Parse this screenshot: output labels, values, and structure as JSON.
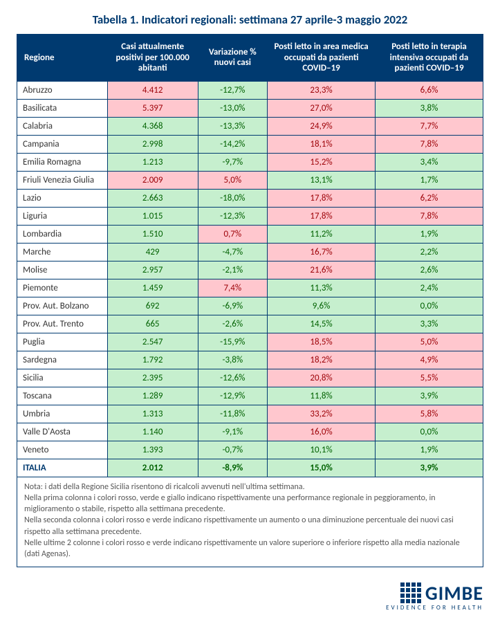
{
  "title": "Tabella 1. Indicatori regionali: settimana 27 aprile-3 maggio 2022",
  "table": {
    "type": "table",
    "header_bg": "#003a70",
    "header_color": "#ffffff",
    "cell_green_bg": "#c6efce",
    "cell_green_color": "#006100",
    "cell_red_bg": "#ffc7ce",
    "cell_red_color": "#9c0006",
    "border_color": "#003a70",
    "columns": [
      "Regione",
      "Casi attualmente positivi per 100.000 abitanti",
      "Variazione % nuovi casi",
      "Posti letto in area medica occupati da pazienti COVID–19",
      "Posti letto in terapia intensiva occupati da pazienti COVID–19"
    ],
    "rows": [
      {
        "regione": "Abruzzo",
        "casi": {
          "v": "4.412",
          "c": "red"
        },
        "var": {
          "v": "-12,7%",
          "c": "green"
        },
        "med": {
          "v": "23,3%",
          "c": "red"
        },
        "ti": {
          "v": "6,6%",
          "c": "red"
        }
      },
      {
        "regione": "Basilicata",
        "casi": {
          "v": "5.397",
          "c": "red"
        },
        "var": {
          "v": "-13,0%",
          "c": "green"
        },
        "med": {
          "v": "27,0%",
          "c": "red"
        },
        "ti": {
          "v": "3,8%",
          "c": "green"
        }
      },
      {
        "regione": "Calabria",
        "casi": {
          "v": "4.368",
          "c": "green"
        },
        "var": {
          "v": "-13,3%",
          "c": "green"
        },
        "med": {
          "v": "24,9%",
          "c": "red"
        },
        "ti": {
          "v": "7,7%",
          "c": "red"
        }
      },
      {
        "regione": "Campania",
        "casi": {
          "v": "2.998",
          "c": "green"
        },
        "var": {
          "v": "-14,2%",
          "c": "green"
        },
        "med": {
          "v": "18,1%",
          "c": "red"
        },
        "ti": {
          "v": "7,8%",
          "c": "red"
        }
      },
      {
        "regione": "Emilia Romagna",
        "casi": {
          "v": "1.213",
          "c": "green"
        },
        "var": {
          "v": "-9,7%",
          "c": "green"
        },
        "med": {
          "v": "15,2%",
          "c": "red"
        },
        "ti": {
          "v": "3,4%",
          "c": "green"
        }
      },
      {
        "regione": "Friuli Venezia Giulia",
        "casi": {
          "v": "2.009",
          "c": "red"
        },
        "var": {
          "v": "5,0%",
          "c": "red"
        },
        "med": {
          "v": "13,1%",
          "c": "green"
        },
        "ti": {
          "v": "1,7%",
          "c": "green"
        }
      },
      {
        "regione": "Lazio",
        "casi": {
          "v": "2.663",
          "c": "green"
        },
        "var": {
          "v": "-18,0%",
          "c": "green"
        },
        "med": {
          "v": "17,8%",
          "c": "red"
        },
        "ti": {
          "v": "6,2%",
          "c": "red"
        }
      },
      {
        "regione": "Liguria",
        "casi": {
          "v": "1.015",
          "c": "green"
        },
        "var": {
          "v": "-12,3%",
          "c": "green"
        },
        "med": {
          "v": "17,8%",
          "c": "red"
        },
        "ti": {
          "v": "7,8%",
          "c": "red"
        }
      },
      {
        "regione": "Lombardia",
        "casi": {
          "v": "1.510",
          "c": "green"
        },
        "var": {
          "v": "0,7%",
          "c": "red"
        },
        "med": {
          "v": "11,2%",
          "c": "green"
        },
        "ti": {
          "v": "1,9%",
          "c": "green"
        }
      },
      {
        "regione": "Marche",
        "casi": {
          "v": "429",
          "c": "green"
        },
        "var": {
          "v": "-4,7%",
          "c": "green"
        },
        "med": {
          "v": "16,7%",
          "c": "red"
        },
        "ti": {
          "v": "2,2%",
          "c": "green"
        }
      },
      {
        "regione": "Molise",
        "casi": {
          "v": "2.957",
          "c": "green"
        },
        "var": {
          "v": "-2,1%",
          "c": "green"
        },
        "med": {
          "v": "21,6%",
          "c": "red"
        },
        "ti": {
          "v": "2,6%",
          "c": "green"
        }
      },
      {
        "regione": "Piemonte",
        "casi": {
          "v": "1.459",
          "c": "green"
        },
        "var": {
          "v": "7,4%",
          "c": "red"
        },
        "med": {
          "v": "11,3%",
          "c": "green"
        },
        "ti": {
          "v": "2,4%",
          "c": "green"
        }
      },
      {
        "regione": "Prov. Aut. Bolzano",
        "casi": {
          "v": "692",
          "c": "green"
        },
        "var": {
          "v": "-6,9%",
          "c": "green"
        },
        "med": {
          "v": "9,6%",
          "c": "green"
        },
        "ti": {
          "v": "0,0%",
          "c": "green"
        }
      },
      {
        "regione": "Prov. Aut. Trento",
        "casi": {
          "v": "665",
          "c": "green"
        },
        "var": {
          "v": "-2,6%",
          "c": "green"
        },
        "med": {
          "v": "14,5%",
          "c": "green"
        },
        "ti": {
          "v": "3,3%",
          "c": "green"
        }
      },
      {
        "regione": "Puglia",
        "casi": {
          "v": "2.547",
          "c": "green"
        },
        "var": {
          "v": "-15,9%",
          "c": "green"
        },
        "med": {
          "v": "18,5%",
          "c": "red"
        },
        "ti": {
          "v": "5,0%",
          "c": "red"
        }
      },
      {
        "regione": "Sardegna",
        "casi": {
          "v": "1.792",
          "c": "green"
        },
        "var": {
          "v": "-3,8%",
          "c": "green"
        },
        "med": {
          "v": "18,2%",
          "c": "red"
        },
        "ti": {
          "v": "4,9%",
          "c": "red"
        }
      },
      {
        "regione": "Sicilia",
        "casi": {
          "v": "2.395",
          "c": "green"
        },
        "var": {
          "v": "-12,6%",
          "c": "green"
        },
        "med": {
          "v": "20,8%",
          "c": "red"
        },
        "ti": {
          "v": "5,5%",
          "c": "red"
        }
      },
      {
        "regione": "Toscana",
        "casi": {
          "v": "1.289",
          "c": "green"
        },
        "var": {
          "v": "-12,9%",
          "c": "green"
        },
        "med": {
          "v": "11,8%",
          "c": "green"
        },
        "ti": {
          "v": "3,9%",
          "c": "green"
        }
      },
      {
        "regione": "Umbria",
        "casi": {
          "v": "1.313",
          "c": "green"
        },
        "var": {
          "v": "-11,8%",
          "c": "green"
        },
        "med": {
          "v": "33,2%",
          "c": "red"
        },
        "ti": {
          "v": "5,8%",
          "c": "red"
        }
      },
      {
        "regione": "Valle D'Aosta",
        "casi": {
          "v": "1.140",
          "c": "green"
        },
        "var": {
          "v": "-9,1%",
          "c": "green"
        },
        "med": {
          "v": "16,0%",
          "c": "red"
        },
        "ti": {
          "v": "0,0%",
          "c": "green"
        }
      },
      {
        "regione": "Veneto",
        "casi": {
          "v": "1.393",
          "c": "green"
        },
        "var": {
          "v": "-0,7%",
          "c": "green"
        },
        "med": {
          "v": "10,1%",
          "c": "green"
        },
        "ti": {
          "v": "1,9%",
          "c": "green"
        }
      },
      {
        "regione": "ITALIA",
        "casi": {
          "v": "2.012",
          "c": "green"
        },
        "var": {
          "v": "-8,9%",
          "c": "green"
        },
        "med": {
          "v": "15,0%",
          "c": "green"
        },
        "ti": {
          "v": "3,9%",
          "c": "green"
        },
        "bold": true
      }
    ]
  },
  "note": "Nota: i dati della Regione Sicilia risentono di ricalcoli avvenuti nell'ultima settimana.\nNella prima colonna i colori rosso, verde e giallo indicano rispettivamente una performance regionale in peggioramento, in miglioramento o stabile, rispetto alla settimana precedente.\nNella seconda colonna i colori rosso e verde indicano rispettivamente un aumento o una diminuzione percentuale dei nuovi casi rispetto alla settimana precedente.\nNelle ultime 2 colonne i colori rosso e verde indicano rispettivamente un valore superiore o inferiore rispetto alla media nazionale (dati Agenas).",
  "logo": {
    "brand": "GIMBE",
    "tagline": "EVIDENCE FOR HEALTH",
    "color": "#003a70"
  }
}
